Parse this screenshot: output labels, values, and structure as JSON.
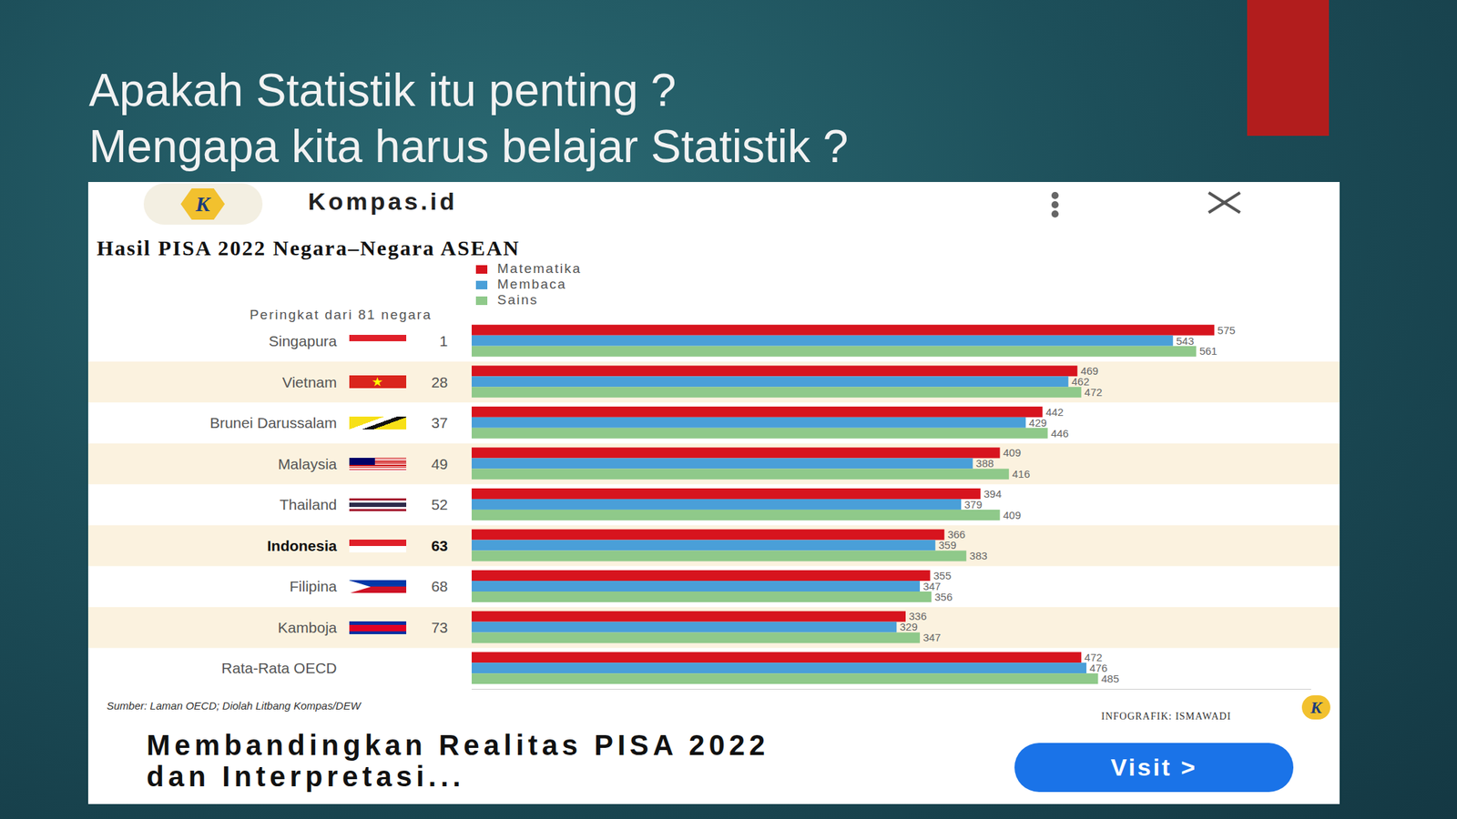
{
  "slide": {
    "title": [
      "Apakah Statistik itu penting ?",
      "Mengapa kita harus belajar Statistik ?"
    ]
  },
  "card": {
    "site": "Kompas.id",
    "logo": "K",
    "link_title": "Membandingkan Realitas PISA 2022 dan Interpretasi...",
    "button": "Visit >"
  },
  "chart_data": {
    "type": "bar",
    "orientation": "horizontal",
    "title": "Hasil PISA 2022 Negara–Negara ASEAN",
    "rank_label": "Peringkat dari 81 negara",
    "categories": [
      "Singapura",
      "Vietnam",
      "Brunei Darussalam",
      "Malaysia",
      "Thailand",
      "Indonesia",
      "Filipina",
      "Kamboja",
      "Rata-Rata OECD"
    ],
    "ranks": [
      1,
      28,
      37,
      49,
      52,
      63,
      68,
      73,
      null
    ],
    "series": [
      {
        "name": "Matematika",
        "color": "#d7141e",
        "values": [
          575,
          469,
          442,
          409,
          394,
          366,
          355,
          336,
          472
        ]
      },
      {
        "name": "Membaca",
        "color": "#4a9fd8",
        "values": [
          543,
          462,
          429,
          388,
          379,
          359,
          347,
          329,
          476
        ]
      },
      {
        "name": "Sains",
        "color": "#8fc98a",
        "values": [
          561,
          472,
          446,
          416,
          409,
          383,
          356,
          347,
          485
        ]
      }
    ],
    "xlim": [
      0,
      650
    ],
    "xticks": [],
    "tick_labels": "y",
    "data_labels": true,
    "legend": "top",
    "source": "Sumber: Laman OECD; Diolah Litbang Kompas/DEW",
    "credit": "INFOGRAFIK: ISMAWADI"
  }
}
